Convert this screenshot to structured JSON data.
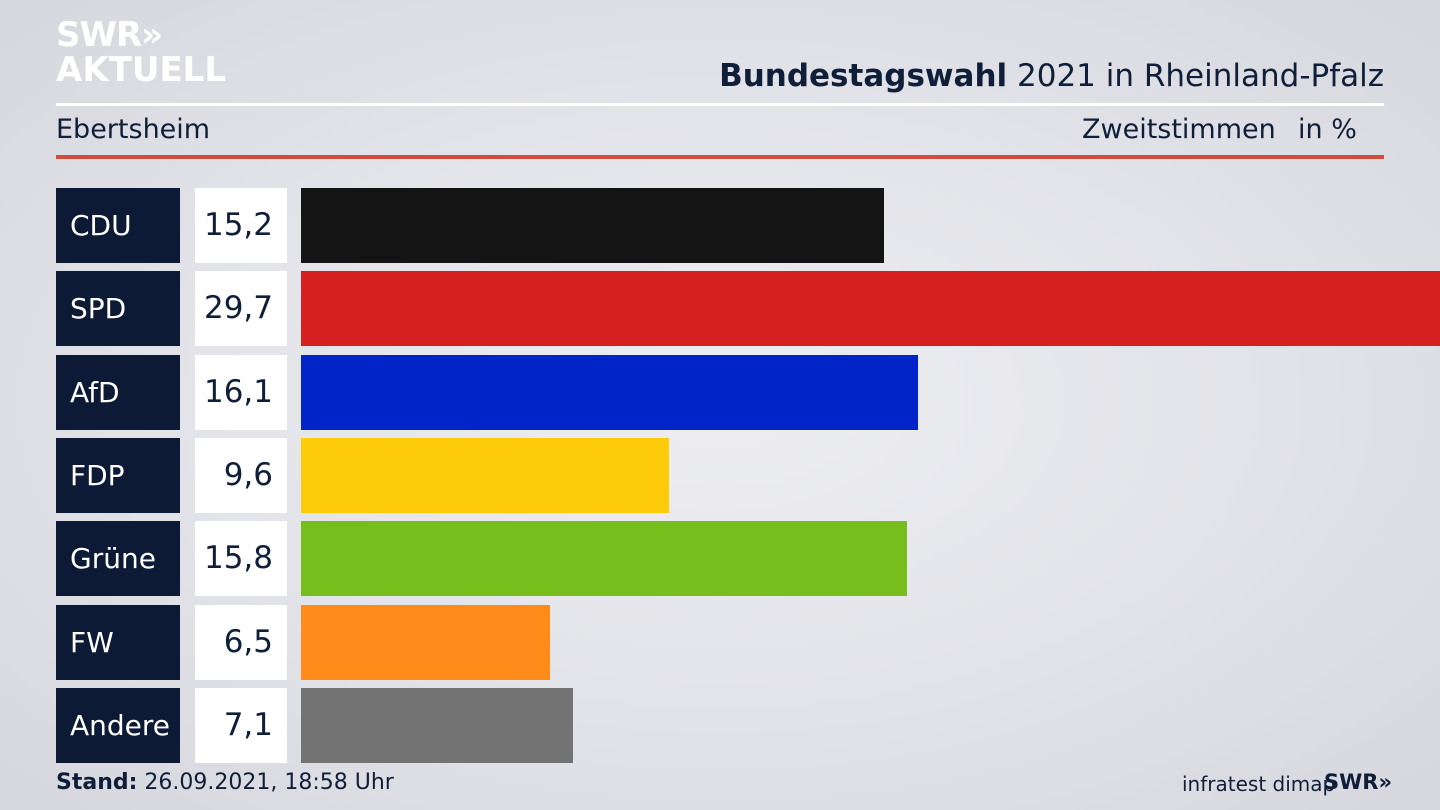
{
  "brand": {
    "line1": "SWR",
    "line2": "AKTUELL",
    "arrows": "»"
  },
  "header": {
    "title_bold": "Bundestagswahl",
    "title_rest": " 2021 in Rheinland-Pfalz"
  },
  "subheader": {
    "place": "Ebertsheim",
    "vote_type": "Zweitstimmen",
    "unit": "in %"
  },
  "colors": {
    "CDU": "#141414",
    "SPD": "#d62020",
    "AfD": "#0024c8",
    "FDP": "#fecb0a",
    "Grüne": "#77be1c",
    "FW": "#ff8c1a",
    "Andere": "#737373"
  },
  "chart_data": {
    "type": "bar",
    "orientation": "horizontal",
    "categories": [
      "CDU",
      "SPD",
      "AfD",
      "FDP",
      "Grüne",
      "FW",
      "Andere"
    ],
    "values": [
      15.2,
      29.7,
      16.1,
      9.6,
      15.8,
      6.5,
      7.1
    ],
    "value_labels": [
      "15,2",
      "29,7",
      "16,1",
      "9,6",
      "15,8",
      "6,5",
      "7,1"
    ],
    "title": "Bundestagswahl 2021 in Rheinland-Pfalz",
    "subtitle": "Ebertsheim",
    "ylabel": "",
    "xlabel": "",
    "unit": "in %",
    "xlim": [
      0,
      29.7
    ],
    "grid": false,
    "legend": "none"
  },
  "footer": {
    "stand_label": "Stand:",
    "stand_value": " 26.09.2021, 18:58 Uhr",
    "source": "infratest dimap",
    "logo": "SWR»"
  }
}
